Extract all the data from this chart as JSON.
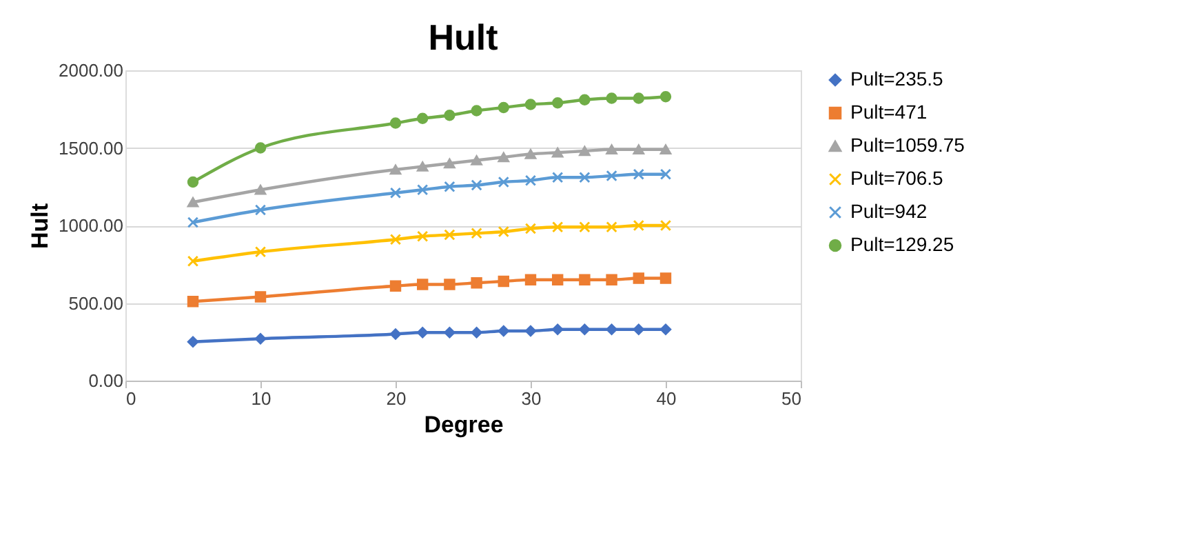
{
  "chart_data": {
    "type": "line",
    "title": "Hult",
    "xlabel": "Degree",
    "ylabel": "Hult",
    "x": [
      5,
      10,
      20,
      22,
      24,
      26,
      28,
      30,
      32,
      34,
      36,
      38,
      40
    ],
    "xlim": [
      0,
      50
    ],
    "xticks": [
      0,
      10,
      20,
      30,
      40,
      50
    ],
    "ylim": [
      0,
      2000
    ],
    "yticks": [
      {
        "value": 0,
        "label": "0.00"
      },
      {
        "value": 500,
        "label": "500.00"
      },
      {
        "value": 1000,
        "label": "1000.00"
      },
      {
        "value": 1500,
        "label": "1500.00"
      },
      {
        "value": 2000,
        "label": "2000.00"
      }
    ],
    "grid": "y",
    "legend": "right",
    "line_style": "solid",
    "series": [
      {
        "name": "Pult=235.5",
        "color": "#4472c4",
        "marker": "diamond",
        "values": [
          250,
          270,
          300,
          310,
          310,
          310,
          320,
          320,
          330,
          330,
          330,
          330,
          330
        ]
      },
      {
        "name": "Pult=471",
        "color": "#ed7d31",
        "marker": "square",
        "values": [
          510,
          540,
          610,
          620,
          620,
          630,
          640,
          650,
          650,
          650,
          650,
          660,
          660
        ]
      },
      {
        "name": "Pult=1059.75",
        "color": "#a5a5a5",
        "marker": "triangle",
        "values": [
          1150,
          1230,
          1360,
          1380,
          1400,
          1420,
          1440,
          1460,
          1470,
          1480,
          1490,
          1490,
          1490
        ]
      },
      {
        "name": "Pult=706.5",
        "color": "#ffc000",
        "marker": "cross",
        "values": [
          770,
          830,
          910,
          930,
          940,
          950,
          960,
          980,
          990,
          990,
          990,
          1000,
          1000
        ]
      },
      {
        "name": "Pult=942",
        "color": "#5b9bd5",
        "marker": "cross",
        "values": [
          1020,
          1100,
          1210,
          1230,
          1250,
          1260,
          1280,
          1290,
          1310,
          1310,
          1320,
          1330,
          1330
        ]
      },
      {
        "name": "Pult=129.25",
        "color": "#70ad47",
        "marker": "circle",
        "values": [
          1280,
          1500,
          1660,
          1690,
          1710,
          1740,
          1760,
          1780,
          1790,
          1810,
          1820,
          1820,
          1830
        ]
      }
    ]
  }
}
